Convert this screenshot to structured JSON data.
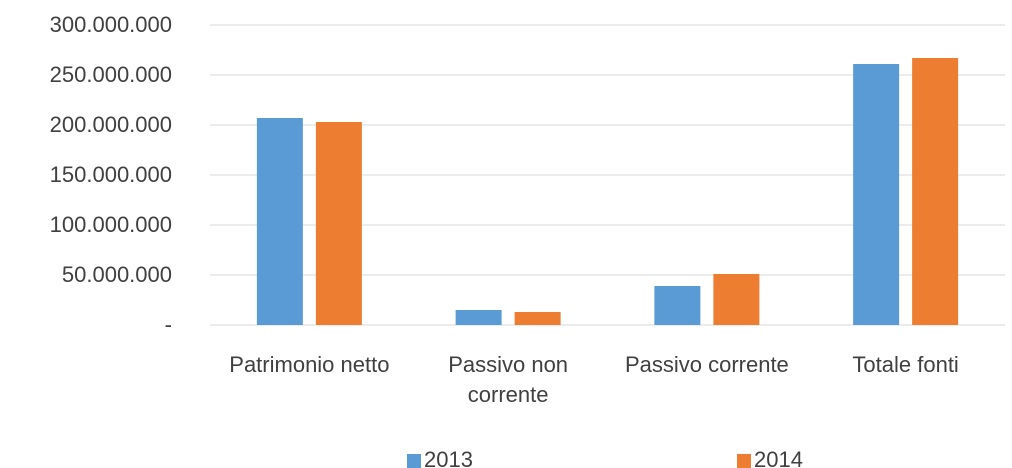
{
  "chart_data": {
    "type": "bar",
    "categories": [
      "Patrimonio netto",
      "Passivo non corrente",
      "Passivo corrente",
      "Totale fonti"
    ],
    "series": [
      {
        "name": "2013",
        "color": "#5b9bd5",
        "values": [
          207000000,
          15000000,
          39000000,
          261000000
        ]
      },
      {
        "name": "2014",
        "color": "#ed7d31",
        "values": [
          203000000,
          13000000,
          51000000,
          267000000
        ]
      }
    ],
    "ylim": [
      0,
      300000000
    ],
    "yticks": [
      {
        "value": 0,
        "label": "-"
      },
      {
        "value": 50000000,
        "label": "50.000.000"
      },
      {
        "value": 100000000,
        "label": "100.000.000"
      },
      {
        "value": 150000000,
        "label": "150.000.000"
      },
      {
        "value": 200000000,
        "label": "200.000.000"
      },
      {
        "value": 250000000,
        "label": "250.000.000"
      },
      {
        "value": 300000000,
        "label": "300.000.000"
      }
    ],
    "grid": true,
    "legend": "bottom"
  }
}
